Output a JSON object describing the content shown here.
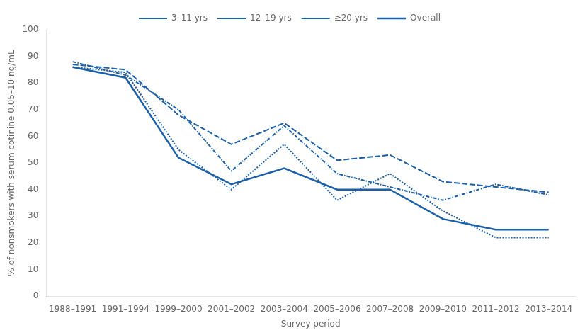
{
  "chart_data": {
    "type": "line",
    "categories": [
      "1988–1991",
      "1991–1994",
      "1999–2000",
      "2001–2002",
      "2003–2004",
      "2005–2006",
      "2007–2008",
      "2009–2010",
      "2011–2012",
      "2013–2014"
    ],
    "series": [
      {
        "name": "3–11 yrs",
        "color": "#1B5FA8",
        "line_style": "dashed",
        "values": [
          87,
          85,
          68,
          57,
          65,
          51,
          53,
          43,
          41,
          39
        ]
      },
      {
        "name": "12–19 yrs",
        "color": "#1B5FA8",
        "line_style": "dotted",
        "values": [
          86,
          84,
          55,
          40,
          57,
          36,
          46,
          32,
          22,
          22
        ]
      },
      {
        "name": "≥20 yrs",
        "color": "#1B5FA8",
        "line_style": "dashdot",
        "values": [
          88,
          83,
          70,
          47,
          64,
          46,
          41,
          36,
          42,
          38
        ]
      },
      {
        "name": "Overall",
        "color": "#1B5FA8",
        "line_style": "solid",
        "values": [
          86,
          82,
          52,
          42,
          48,
          40,
          40,
          29,
          25,
          25
        ]
      }
    ],
    "ylabel": "% of nonsmokers with serum cotinine 0.05–10 ng/mL",
    "xlabel": "Survey period",
    "ylim": [
      0,
      100
    ],
    "yticks": [
      0,
      10,
      20,
      30,
      40,
      50,
      60,
      70,
      80,
      90,
      100
    ],
    "grid": false,
    "legend": "top"
  }
}
